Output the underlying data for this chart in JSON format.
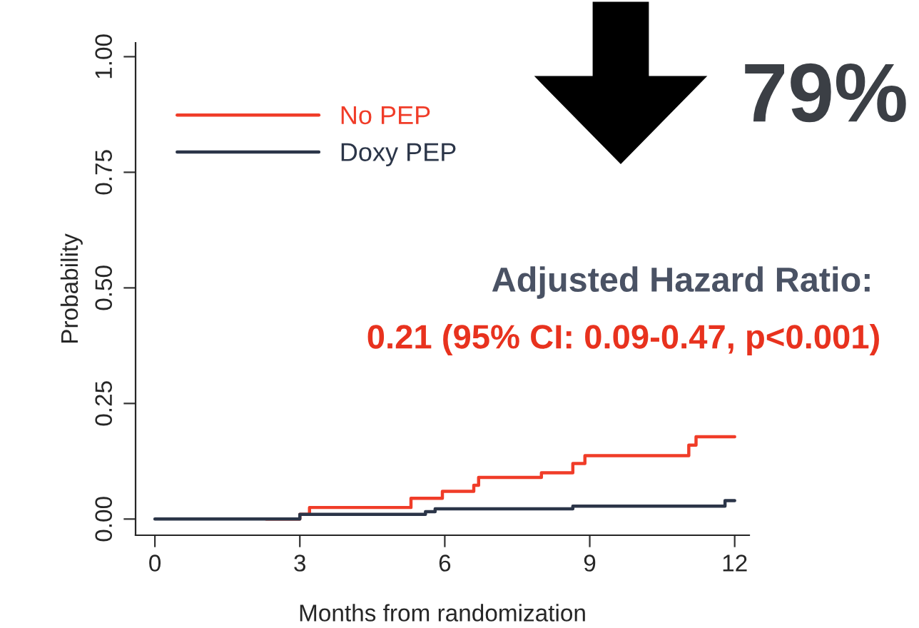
{
  "chart_data": {
    "type": "step",
    "xlabel": "Months from randomization",
    "ylabel": "Probability",
    "xlim": [
      -0.4,
      12.3
    ],
    "ylim": [
      -0.035,
      1.03
    ],
    "xticks": [
      0,
      3,
      6,
      9,
      12
    ],
    "yticks": [
      {
        "value": 0,
        "label": "0.00"
      },
      {
        "value": 0.25,
        "label": "0.25"
      },
      {
        "value": 0.5,
        "label": "0.50"
      },
      {
        "value": 0.75,
        "label": "0.75"
      },
      {
        "value": 1,
        "label": "1.00"
      }
    ],
    "grid": false,
    "legend": "top left",
    "marker": "none",
    "line_style": "solid",
    "series": [
      {
        "name": "No PEP",
        "color": "#f03c28",
        "x": [
          2.3,
          3.0,
          3.2,
          5.3,
          5.95,
          6.6,
          6.7,
          8.0,
          8.65,
          8.9,
          11.05,
          11.2,
          12.0
        ],
        "values": [
          0,
          0.01,
          0.025,
          0.045,
          0.06,
          0.073,
          0.09,
          0.1,
          0.12,
          0.137,
          0.16,
          0.178,
          0.178
        ]
      },
      {
        "name": "Doxy PEP",
        "color": "#2b3548",
        "x": [
          0,
          3.0,
          5.6,
          5.8,
          8.65,
          11.8,
          12.0
        ],
        "values": [
          0,
          0.01,
          0.016,
          0.022,
          0.028,
          0.04,
          0.04
        ]
      }
    ],
    "annotations": [
      "79%",
      "Adjusted Hazard Ratio:",
      "0.21 (95% CI: 0.09-0.47, p<0.001)"
    ]
  }
}
